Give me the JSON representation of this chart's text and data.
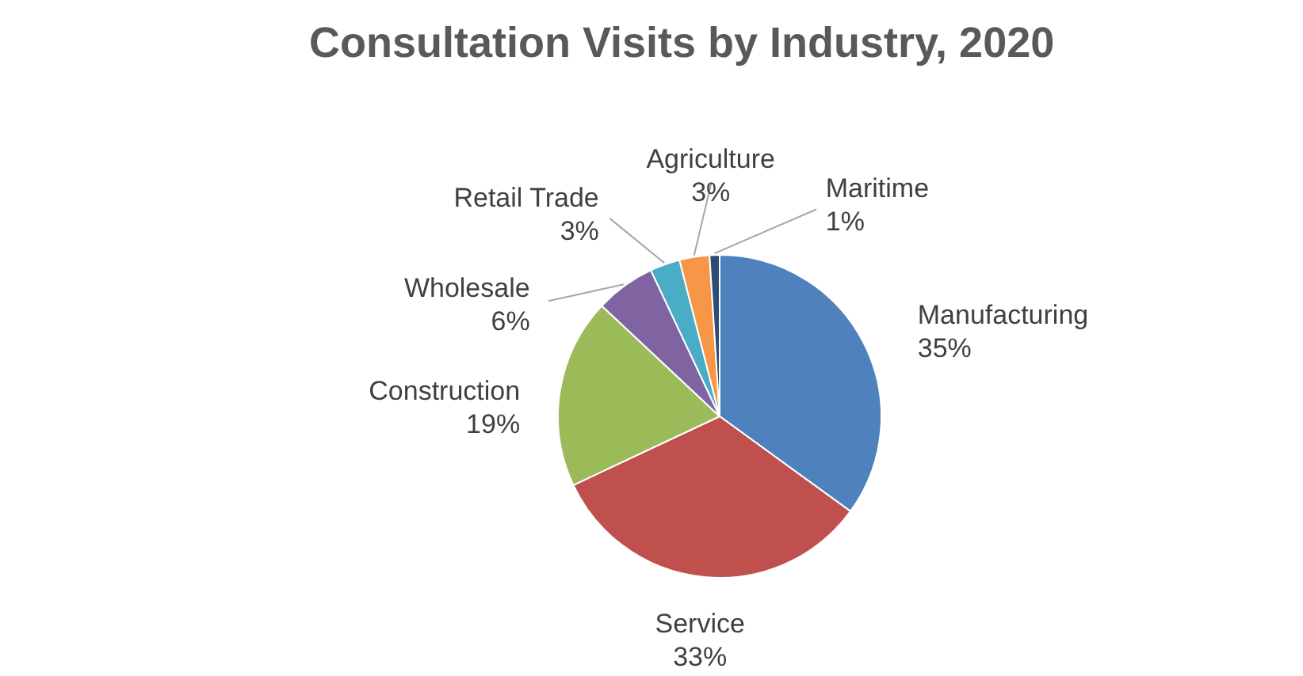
{
  "chart_data": {
    "type": "pie",
    "title": "Consultation Visits by Industry, 2020",
    "categories": [
      "Manufacturing",
      "Service",
      "Construction",
      "Wholesale",
      "Retail Trade",
      "Agriculture",
      "Maritime"
    ],
    "values": [
      35,
      33,
      19,
      6,
      3,
      3,
      1
    ],
    "value_labels": [
      "35%",
      "33%",
      "19%",
      "6%",
      "3%",
      "3%",
      "1%"
    ],
    "colors": [
      "#4f81bd",
      "#c0504d",
      "#9bbb59",
      "#8064a2",
      "#4bacc6",
      "#f79646",
      "#2c4d75"
    ]
  }
}
